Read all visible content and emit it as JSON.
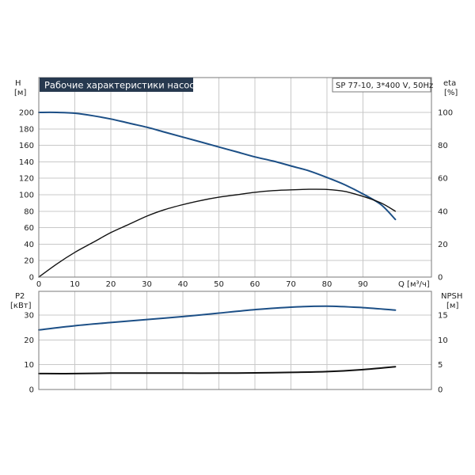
{
  "title": "Рабочие характеристики насоса",
  "model": "SP 77-10, 3*400 V, 50Hz",
  "colors": {
    "title_bg": "#27394f",
    "blue": "#1c4f86",
    "black": "#111111",
    "grid": "#c8c8c8",
    "frame": "#7a7a7a"
  },
  "chart_data": [
    {
      "type": "line",
      "xlabel": "Q [м³/ч]",
      "xlim": [
        0,
        99
      ],
      "x_ticks": [
        "0",
        "10",
        "20",
        "30",
        "40",
        "50",
        "60",
        "70",
        "80",
        "90"
      ],
      "y_left": {
        "label_line1": "H",
        "label_line2": "[м]",
        "lim": [
          0,
          200
        ],
        "ticks": [
          "0",
          "20",
          "40",
          "60",
          "80",
          "100",
          "120",
          "140",
          "160",
          "180",
          "200"
        ]
      },
      "y_right": {
        "label_line1": "eta",
        "label_line2": "[%]",
        "lim": [
          0,
          100
        ],
        "ticks": [
          "0",
          "20",
          "40",
          "60",
          "80",
          "100"
        ]
      },
      "grid": true,
      "series": [
        {
          "axis": "left",
          "color": "#1c4f86",
          "x": [
            0,
            5,
            10,
            15,
            20,
            25,
            30,
            35,
            40,
            45,
            50,
            55,
            60,
            65,
            70,
            75,
            80,
            85,
            90,
            95,
            99
          ],
          "y": [
            200,
            200,
            199,
            196,
            192,
            187,
            182,
            176,
            170,
            164,
            158,
            152,
            146,
            141,
            135,
            129,
            121,
            112,
            101,
            88,
            70
          ]
        },
        {
          "axis": "right",
          "color": "#111111",
          "x": [
            0,
            5,
            10,
            15,
            20,
            25,
            30,
            35,
            40,
            45,
            50,
            55,
            60,
            65,
            70,
            75,
            80,
            85,
            90,
            95,
            99
          ],
          "y": [
            0,
            8,
            15,
            21,
            27,
            32,
            37,
            41,
            44,
            46.5,
            48.5,
            50,
            51.5,
            52.5,
            53,
            53.3,
            53.2,
            52,
            49,
            45,
            40
          ]
        }
      ]
    },
    {
      "type": "line",
      "xlim": [
        0,
        99
      ],
      "y_left": {
        "label_line1": "P2",
        "label_line2": "[кВт]",
        "lim": [
          0,
          40
        ],
        "ticks": [
          "0",
          "10",
          "20",
          "30"
        ]
      },
      "y_right": {
        "label_line1": "NPSH",
        "label_line2": "[м]",
        "lim": [
          0,
          20
        ],
        "ticks": [
          "0",
          "5",
          "10",
          "15"
        ]
      },
      "grid": true,
      "series": [
        {
          "axis": "left",
          "color": "#1c4f86",
          "x": [
            0,
            10,
            20,
            30,
            40,
            50,
            60,
            70,
            80,
            90,
            99
          ],
          "y": [
            24,
            25.7,
            27,
            28.2,
            29.4,
            30.8,
            32.2,
            33.2,
            33.6,
            33,
            32
          ]
        },
        {
          "axis": "right",
          "color": "#111111",
          "x": [
            0,
            10,
            20,
            30,
            40,
            50,
            60,
            70,
            80,
            90,
            99
          ],
          "y": [
            3.2,
            3.2,
            3.3,
            3.3,
            3.3,
            3.3,
            3.35,
            3.45,
            3.6,
            4.0,
            4.6
          ]
        }
      ]
    }
  ]
}
